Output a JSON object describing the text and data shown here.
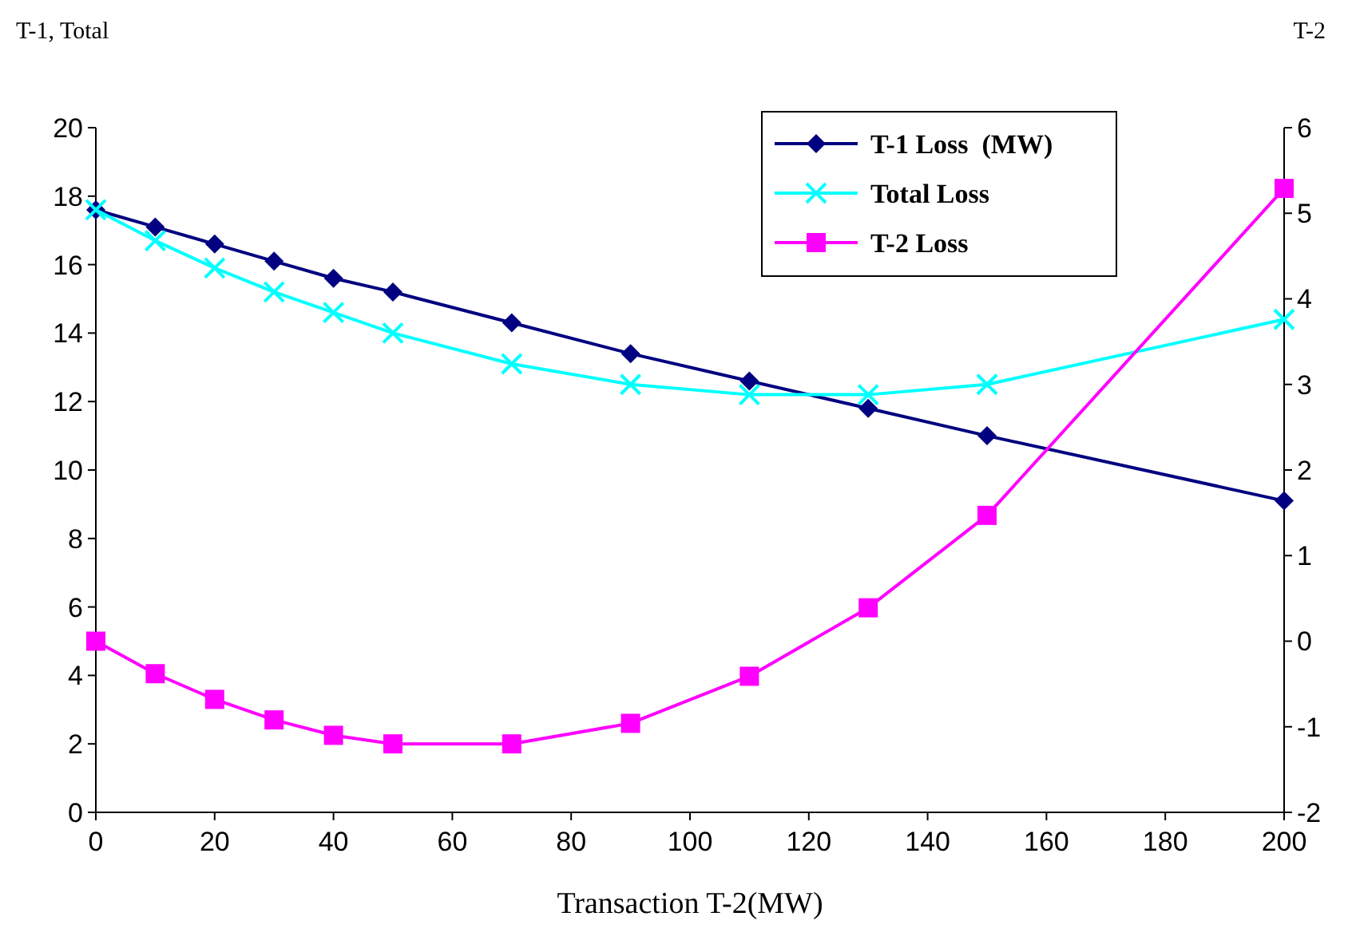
{
  "chart_data": {
    "type": "line",
    "xlabel": "Transaction T-2(MW)",
    "ylabel": "T-1, Total",
    "y2label": "T-2",
    "x": [
      0,
      10,
      20,
      30,
      40,
      50,
      70,
      90,
      110,
      130,
      150,
      200
    ],
    "xlim": [
      0,
      200
    ],
    "xticks": [
      0,
      20,
      40,
      60,
      80,
      100,
      120,
      140,
      160,
      180,
      200
    ],
    "ylim": [
      0,
      20
    ],
    "yticks": [
      0,
      2,
      4,
      6,
      8,
      10,
      12,
      14,
      16,
      18,
      20
    ],
    "y2lim": [
      -2,
      6
    ],
    "y2ticks": [
      -2,
      -1,
      0,
      1,
      2,
      3,
      4,
      5,
      6
    ],
    "grid": false,
    "legend": "top right",
    "series": [
      {
        "name": "T-1 Loss  (MW)",
        "color": "#000080",
        "marker": "diamond",
        "values": [
          17.6,
          17.1,
          16.6,
          16.1,
          15.6,
          15.2,
          14.3,
          13.4,
          12.6,
          11.8,
          11.0,
          9.1
        ]
      },
      {
        "name": "Total Loss",
        "color": "#00ffff",
        "marker": "cross",
        "values": [
          17.6,
          16.7,
          15.9,
          15.2,
          14.6,
          14.0,
          13.1,
          12.5,
          12.2,
          12.2,
          12.5,
          14.4
        ]
      },
      {
        "name": "T-2 Loss",
        "color": "#ff00ff",
        "marker": "square",
        "axis": "y2",
        "values": [
          0,
          -0.38,
          -0.68,
          -0.92,
          -1.1,
          -1.2,
          -1.2,
          -0.96,
          -0.41,
          0.39,
          1.47,
          5.29
        ]
      }
    ]
  }
}
